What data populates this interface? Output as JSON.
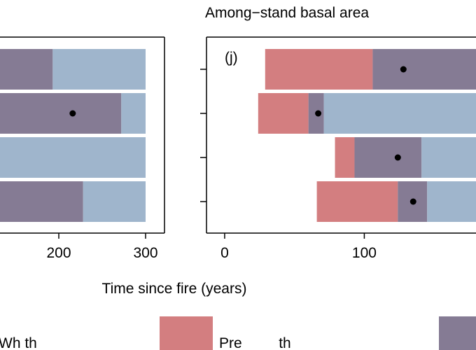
{
  "chart_data": {
    "type": "bar",
    "subtype": "horizontal-range-overlap",
    "xlabel": "Time since fire (years)",
    "colors": {
      "red": "#d37e80",
      "purple": "#857b94",
      "blue": "#9fb5cc",
      "frame": "#000000",
      "separator": "#ffffff"
    },
    "legend": [
      {
        "label": "Wh",
        "color_key": "blue",
        "text": "Wh th             "
      },
      {
        "label": "Pre",
        "color_key": "red",
        "text": "Pre         th       "
      },
      {
        "label": "",
        "color_key": "purple",
        "text": ""
      }
    ],
    "panels": [
      {
        "id": "left",
        "title": "",
        "letter": "",
        "xlim": [
          100,
          300
        ],
        "xticks": [
          200,
          300
        ],
        "xtick_labels": [
          "200",
          "300"
        ],
        "rows": [
          {
            "segments": [
              {
                "color": "purple",
                "start": 100,
                "end": 193
              },
              {
                "color": "blue",
                "start": 193,
                "end": 300
              }
            ],
            "point": null
          },
          {
            "segments": [
              {
                "color": "purple",
                "start": 100,
                "end": 272
              },
              {
                "color": "blue",
                "start": 272,
                "end": 300
              }
            ],
            "point": 216
          },
          {
            "segments": [
              {
                "color": "blue",
                "start": 100,
                "end": 300
              }
            ],
            "point": null
          },
          {
            "segments": [
              {
                "color": "purple",
                "start": 100,
                "end": 228
              },
              {
                "color": "blue",
                "start": 228,
                "end": 300
              }
            ],
            "point": null
          }
        ]
      },
      {
        "id": "j",
        "title": "Among−stand basal area",
        "letter": "(j)",
        "xlim": [
          -13,
          190
        ],
        "xticks": [
          0,
          100
        ],
        "xtick_labels": [
          "0",
          "100"
        ],
        "rows": [
          {
            "segments": [
              {
                "color": "red",
                "start": 29,
                "end": 106
              },
              {
                "color": "purple",
                "start": 106,
                "end": 190
              }
            ],
            "point": 128
          },
          {
            "segments": [
              {
                "color": "red",
                "start": 24,
                "end": 60
              },
              {
                "color": "purple",
                "start": 60,
                "end": 71
              },
              {
                "color": "blue",
                "start": 71,
                "end": 190
              }
            ],
            "point": 67
          },
          {
            "segments": [
              {
                "color": "red",
                "start": 79,
                "end": 93
              },
              {
                "color": "purple",
                "start": 93,
                "end": 141
              },
              {
                "color": "blue",
                "start": 141,
                "end": 190
              }
            ],
            "point": 124
          },
          {
            "segments": [
              {
                "color": "red",
                "start": 66,
                "end": 124
              },
              {
                "color": "purple",
                "start": 124,
                "end": 145
              },
              {
                "color": "blue",
                "start": 145,
                "end": 190
              }
            ],
            "point": 135
          }
        ]
      }
    ]
  }
}
